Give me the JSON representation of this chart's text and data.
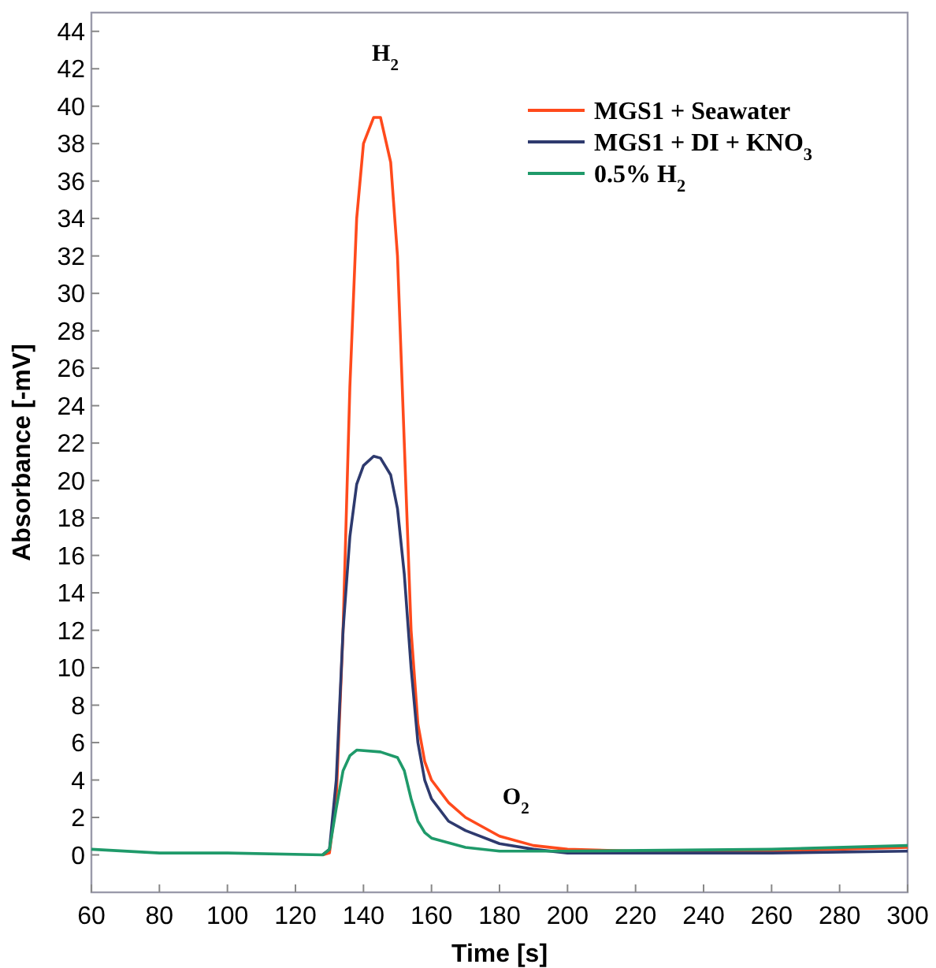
{
  "chart_data": {
    "type": "line",
    "xlabel": "Time [s]",
    "ylabel": "Absorbance [-mV]",
    "xlim": [
      60,
      300
    ],
    "ylim": [
      -2,
      45
    ],
    "xticks": [
      60,
      80,
      100,
      120,
      140,
      160,
      180,
      200,
      220,
      240,
      260,
      280,
      300
    ],
    "yticks": [
      0,
      2,
      4,
      6,
      8,
      10,
      12,
      14,
      16,
      18,
      20,
      22,
      24,
      26,
      28,
      30,
      32,
      34,
      36,
      38,
      40,
      42,
      44
    ],
    "legend": "top right",
    "grid": false,
    "marker": "none",
    "line_style": "solid",
    "annotations": [
      "H$_{2}$",
      "O$_{2}$"
    ],
    "series": [
      {
        "name": "MGS1 + Seawater",
        "color": "#ff4a1c",
        "x": [
          128,
          130,
          132,
          134,
          136,
          138,
          140,
          143,
          145,
          148,
          150,
          152,
          154,
          156,
          158,
          160,
          165,
          170,
          180,
          190,
          200,
          220,
          260,
          300
        ],
        "values": [
          0,
          0.1,
          3,
          12,
          25,
          34,
          38,
          39.4,
          39.4,
          37,
          32,
          22,
          12,
          7,
          5,
          4,
          2.8,
          2,
          1,
          0.5,
          0.3,
          0.2,
          0.2,
          0.4
        ]
      },
      {
        "name": "MGS1 + DI + KNO$_{3}$",
        "color": "#2e3a6e",
        "x": [
          128,
          130,
          132,
          134,
          136,
          138,
          140,
          143,
          145,
          148,
          150,
          152,
          154,
          156,
          158,
          160,
          165,
          170,
          180,
          190,
          200,
          220,
          260,
          300
        ],
        "values": [
          0,
          0.3,
          4,
          12,
          17,
          19.8,
          20.8,
          21.3,
          21.2,
          20.3,
          18.5,
          15,
          10,
          6,
          4,
          3,
          1.8,
          1.3,
          0.6,
          0.3,
          0.1,
          0.1,
          0.1,
          0.2
        ]
      },
      {
        "name": "0.5% H$_{2}$",
        "color": "#1f9a6a",
        "x": [
          60,
          80,
          100,
          128,
          130,
          132,
          134,
          136,
          138,
          145,
          150,
          152,
          154,
          156,
          158,
          160,
          170,
          180,
          200,
          260,
          300
        ],
        "values": [
          0.3,
          0.1,
          0.1,
          0,
          0.3,
          2.5,
          4.5,
          5.3,
          5.6,
          5.5,
          5.2,
          4.5,
          3,
          1.8,
          1.2,
          0.9,
          0.4,
          0.2,
          0.2,
          0.3,
          0.5
        ]
      }
    ]
  }
}
